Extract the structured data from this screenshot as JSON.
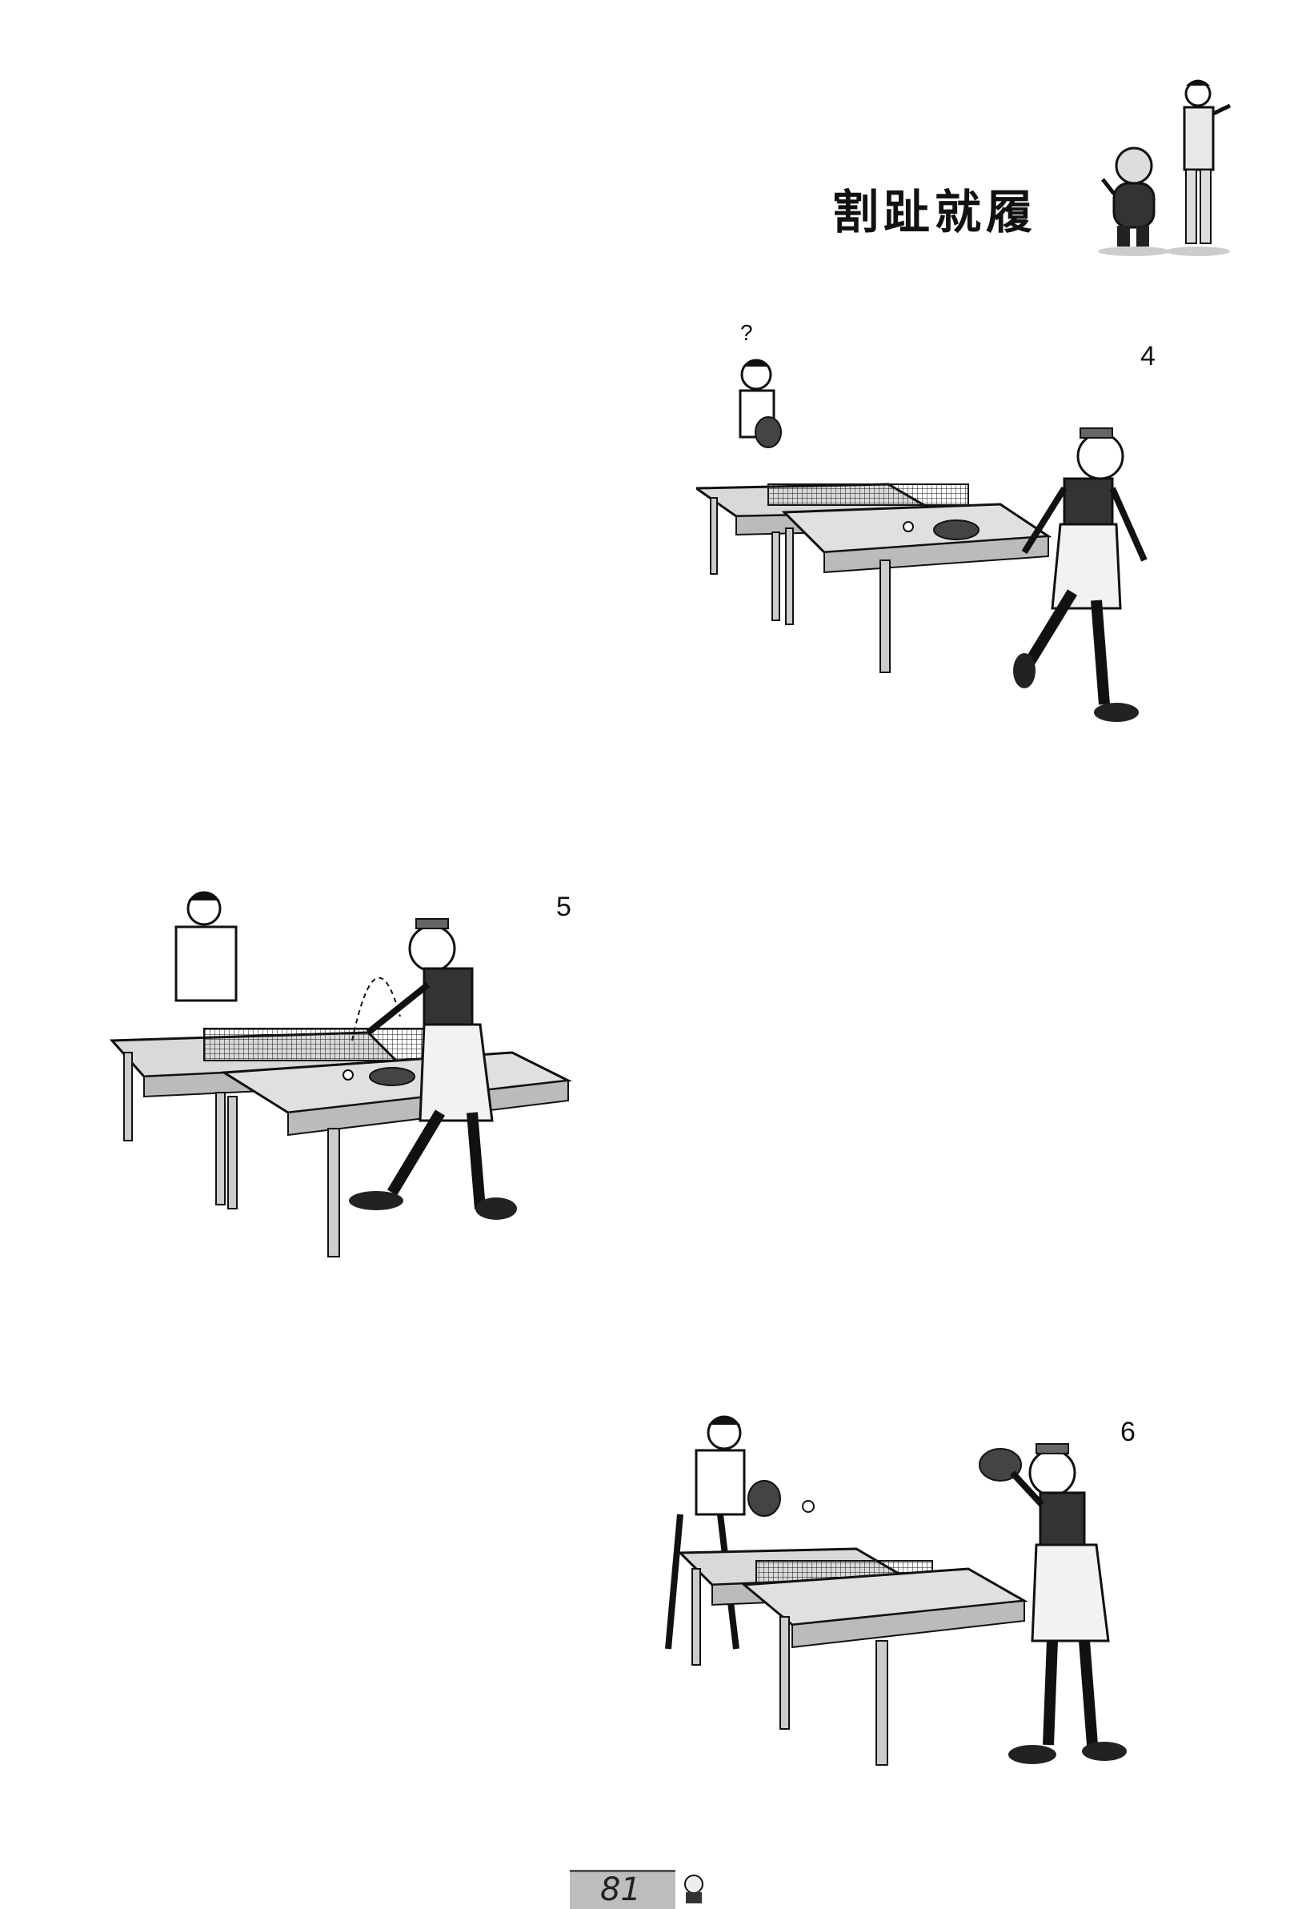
{
  "header": {
    "title": "割趾就履"
  },
  "panels": [
    {
      "number": "4",
      "question_mark": "?"
    },
    {
      "number": "5"
    },
    {
      "number": "6"
    }
  ],
  "footer": {
    "page_number": "81"
  },
  "icons": {
    "header_characters": "two-cartoon-characters-icon",
    "footer_character": "cartoon-face-icon"
  }
}
